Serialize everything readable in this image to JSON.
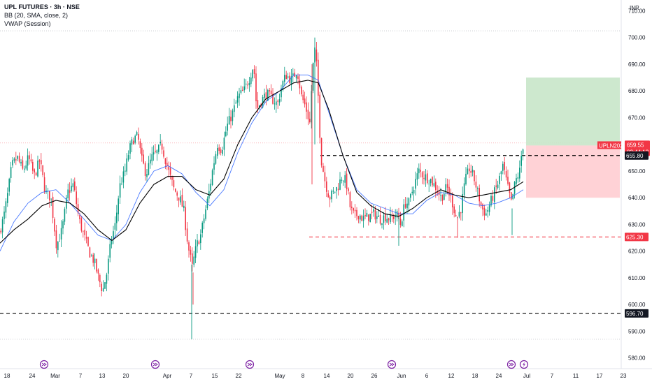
{
  "legend": {
    "title": "UPL FUTURES · 3h · NSE",
    "line1": "BB (20, SMA, close, 2)",
    "line2": "VWAP (Session)"
  },
  "currency": "INR",
  "colors": {
    "up": "#089981",
    "down": "#f23645",
    "basis": "#000000",
    "vwap": "#2962ff",
    "grid": "#b2b5be",
    "profit": "#c8e6c9",
    "loss": "#ffcdd2",
    "event": "#7b1fa2"
  },
  "chart_data": {
    "type": "candlestick",
    "ylim": [
      576,
      713
    ],
    "y_ticks": [
      580,
      590,
      600,
      610,
      620,
      630,
      640,
      650,
      660,
      670,
      680,
      690,
      700,
      710
    ],
    "x_tick_labels": [
      "18",
      "24",
      "Mar",
      "7",
      "13",
      "20",
      "Apr",
      "7",
      "15",
      "22",
      "May",
      "8",
      "14",
      "20",
      "26",
      "Jun",
      "6",
      "12",
      "18",
      "24",
      "Jul",
      "7",
      "11",
      "17",
      "23"
    ],
    "price_path": [
      [
        0,
        627
      ],
      [
        6,
        632
      ],
      [
        12,
        641
      ],
      [
        18,
        652
      ],
      [
        26,
        655
      ],
      [
        34,
        650
      ],
      [
        42,
        655
      ],
      [
        50,
        648
      ],
      [
        58,
        654
      ],
      [
        66,
        642
      ],
      [
        74,
        640
      ],
      [
        82,
        622
      ],
      [
        90,
        628
      ],
      [
        98,
        642
      ],
      [
        106,
        645
      ],
      [
        114,
        632
      ],
      [
        122,
        625
      ],
      [
        130,
        619
      ],
      [
        136,
        616
      ],
      [
        142,
        610
      ],
      [
        148,
        605
      ],
      [
        154,
        612
      ],
      [
        160,
        624
      ],
      [
        166,
        630
      ],
      [
        172,
        644
      ],
      [
        180,
        650
      ],
      [
        186,
        658
      ],
      [
        192,
        662
      ],
      [
        198,
        663
      ],
      [
        204,
        654
      ],
      [
        210,
        649
      ],
      [
        218,
        655
      ],
      [
        226,
        657
      ],
      [
        232,
        660
      ],
      [
        236,
        656
      ],
      [
        242,
        650
      ],
      [
        250,
        643
      ],
      [
        258,
        640
      ],
      [
        264,
        635
      ],
      [
        270,
        622
      ],
      [
        276,
        614
      ],
      [
        282,
        622
      ],
      [
        288,
        626
      ],
      [
        294,
        634
      ],
      [
        300,
        642
      ],
      [
        306,
        652
      ],
      [
        312,
        660
      ],
      [
        318,
        658
      ],
      [
        326,
        667
      ],
      [
        334,
        672
      ],
      [
        342,
        678
      ],
      [
        350,
        680
      ],
      [
        358,
        685
      ],
      [
        364,
        690
      ],
      [
        368,
        673
      ],
      [
        374,
        676
      ],
      [
        382,
        679
      ],
      [
        390,
        677
      ],
      [
        398,
        675
      ],
      [
        404,
        682
      ],
      [
        410,
        686
      ],
      [
        418,
        684
      ],
      [
        426,
        688
      ],
      [
        432,
        678
      ],
      [
        438,
        674
      ],
      [
        444,
        668
      ],
      [
        448,
        688
      ],
      [
        452,
        697
      ],
      [
        456,
        678
      ],
      [
        460,
        655
      ],
      [
        466,
        646
      ],
      [
        472,
        640
      ],
      [
        478,
        642
      ],
      [
        484,
        644
      ],
      [
        490,
        648
      ],
      [
        496,
        646
      ],
      [
        502,
        636
      ],
      [
        508,
        633
      ],
      [
        514,
        634
      ],
      [
        520,
        632
      ],
      [
        528,
        633
      ],
      [
        536,
        634
      ],
      [
        544,
        632
      ],
      [
        552,
        633
      ],
      [
        560,
        632
      ],
      [
        568,
        634
      ],
      [
        574,
        630
      ],
      [
        580,
        638
      ],
      [
        586,
        638
      ],
      [
        592,
        644
      ],
      [
        600,
        650
      ],
      [
        608,
        648
      ],
      [
        616,
        647
      ],
      [
        624,
        644
      ],
      [
        632,
        640
      ],
      [
        640,
        644
      ],
      [
        648,
        638
      ],
      [
        654,
        632
      ],
      [
        660,
        636
      ],
      [
        666,
        646
      ],
      [
        672,
        651
      ],
      [
        678,
        648
      ],
      [
        684,
        642
      ],
      [
        690,
        636
      ],
      [
        696,
        634
      ],
      [
        702,
        638
      ],
      [
        708,
        642
      ],
      [
        714,
        646
      ],
      [
        720,
        652
      ],
      [
        726,
        645
      ],
      [
        732,
        638
      ],
      [
        738,
        646
      ],
      [
        744,
        650
      ],
      [
        748,
        659.55
      ]
    ],
    "bb_basis_path": [
      [
        0,
        623
      ],
      [
        20,
        628
      ],
      [
        40,
        632
      ],
      [
        60,
        637
      ],
      [
        80,
        639
      ],
      [
        100,
        638
      ],
      [
        120,
        634
      ],
      [
        140,
        628
      ],
      [
        160,
        624
      ],
      [
        180,
        628
      ],
      [
        200,
        638
      ],
      [
        220,
        645
      ],
      [
        240,
        648
      ],
      [
        260,
        648
      ],
      [
        280,
        643
      ],
      [
        300,
        641
      ],
      [
        320,
        647
      ],
      [
        340,
        660
      ],
      [
        360,
        670
      ],
      [
        380,
        677
      ],
      [
        400,
        680
      ],
      [
        420,
        683
      ],
      [
        440,
        684
      ],
      [
        455,
        683
      ],
      [
        470,
        673
      ],
      [
        490,
        656
      ],
      [
        510,
        642
      ],
      [
        530,
        637
      ],
      [
        550,
        634
      ],
      [
        570,
        633
      ],
      [
        590,
        636
      ],
      [
        610,
        640
      ],
      [
        630,
        643
      ],
      [
        650,
        641
      ],
      [
        670,
        640
      ],
      [
        690,
        641
      ],
      [
        710,
        642
      ],
      [
        730,
        643
      ],
      [
        748,
        646
      ]
    ],
    "vwap_path": [
      [
        0,
        620
      ],
      [
        20,
        631
      ],
      [
        40,
        638
      ],
      [
        60,
        642
      ],
      [
        80,
        643
      ],
      [
        100,
        638
      ],
      [
        120,
        632
      ],
      [
        140,
        626
      ],
      [
        160,
        624
      ],
      [
        180,
        630
      ],
      [
        200,
        642
      ],
      [
        220,
        650
      ],
      [
        240,
        652
      ],
      [
        260,
        649
      ],
      [
        280,
        642
      ],
      [
        300,
        637
      ],
      [
        320,
        643
      ],
      [
        340,
        657
      ],
      [
        360,
        668
      ],
      [
        380,
        676
      ],
      [
        400,
        680
      ],
      [
        420,
        686
      ],
      [
        440,
        686
      ],
      [
        455,
        684
      ],
      [
        470,
        672
      ],
      [
        490,
        656
      ],
      [
        510,
        643
      ],
      [
        530,
        638
      ],
      [
        550,
        636
      ],
      [
        570,
        634
      ],
      [
        590,
        634
      ],
      [
        610,
        639
      ],
      [
        630,
        642
      ],
      [
        650,
        641
      ],
      [
        670,
        638
      ],
      [
        690,
        637
      ],
      [
        710,
        638
      ],
      [
        730,
        640
      ],
      [
        748,
        643
      ]
    ],
    "horizontal_levels": [
      {
        "price": 655.8,
        "x_start": 458,
        "style": "dashed",
        "color": "#000000",
        "label": "655.80"
      },
      {
        "price": 625.3,
        "x_start": 442,
        "style": "dashed",
        "color": "#f23645",
        "label": "625.30"
      },
      {
        "price": 596.7,
        "x_start": 0,
        "style": "dashed",
        "color": "#000000",
        "label": "596.70"
      }
    ],
    "dotted_levels": [
      {
        "price": 702.5
      },
      {
        "price": 660.5
      },
      {
        "price": 587.0
      }
    ],
    "position": {
      "x_start": 752,
      "x_end": 886,
      "entry": 659.55,
      "target": 685,
      "stop": 640
    },
    "current_price": {
      "price": 659.55,
      "symbol": "UPLN2025",
      "value": "659.55",
      "countdown": "02:44:12"
    },
    "event_markers": [
      {
        "x": 63,
        "kind": "dividend"
      },
      {
        "x": 222,
        "kind": "dividend"
      },
      {
        "x": 357,
        "kind": "dividend"
      },
      {
        "x": 560,
        "kind": "dividend"
      },
      {
        "x": 731,
        "kind": "dividend"
      },
      {
        "x": 749,
        "kind": "earnings"
      }
    ]
  }
}
